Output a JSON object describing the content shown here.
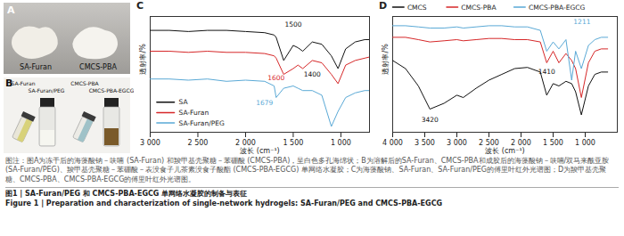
{
  "panels": {
    "A": {
      "label": "A",
      "samples": [
        "SA-Furan",
        "CMCS-PBA"
      ]
    },
    "B": {
      "label": "B",
      "samples": [
        "SA-Furan",
        "SA-Furan/PEG",
        "CMCS-PBA",
        "CMCS-PBA-EGCG"
      ]
    }
  },
  "chart_data": [
    {
      "type": "line",
      "title": "C",
      "xlabel": "波长 (cm⁻¹)",
      "ylabel": "透射率/%",
      "x": [
        3000,
        2800,
        2600,
        2400,
        2200,
        2000,
        1800,
        1700,
        1679,
        1600,
        1500,
        1450,
        1400,
        1300,
        1200,
        1100,
        1030,
        950,
        850,
        750,
        700
      ],
      "series": [
        {
          "name": "SA",
          "color": "#111111",
          "values": [
            88,
            88,
            87,
            88,
            88,
            87,
            86,
            84,
            82,
            62,
            75,
            73,
            70,
            78,
            76,
            66,
            55,
            72,
            78,
            80,
            80
          ]
        },
        {
          "name": "SA-Furan",
          "color": "#d62728",
          "values": [
            70,
            70,
            69,
            70,
            69,
            69,
            68,
            66,
            64,
            50,
            55,
            58,
            55,
            62,
            60,
            50,
            42,
            58,
            62,
            64,
            65
          ]
        },
        {
          "name": "SA-Furan/PEG",
          "color": "#5aa9d6",
          "values": [
            46,
            46,
            45,
            46,
            44,
            45,
            44,
            40,
            30,
            38,
            40,
            38,
            36,
            36,
            32,
            5,
            18,
            30,
            34,
            36,
            36
          ]
        }
      ],
      "xlim": [
        3000,
        700
      ],
      "xticks": [
        {
          "value": 3000,
          "label": "3 000"
        },
        {
          "value": 2500,
          "label": "2 500"
        },
        {
          "value": 2000,
          "label": "2 000"
        },
        {
          "value": 1500,
          "label": "1 500"
        },
        {
          "value": 1000,
          "label": "1 000"
        }
      ],
      "ylim": [
        0,
        100
      ],
      "tick_labels": "x",
      "legend": "lower left",
      "annotations": [
        {
          "label": "1500",
          "x": 1500,
          "y": 93,
          "color": "#111111"
        },
        {
          "label": "1600",
          "x": 1680,
          "y": 47,
          "color": "#d62728"
        },
        {
          "label": "1400",
          "x": 1300,
          "y": 50,
          "color": "#111111"
        },
        {
          "label": "1679",
          "x": 1800,
          "y": 25,
          "color": "#5aa9d6"
        }
      ]
    },
    {
      "type": "line",
      "title": "D",
      "xlabel": "波长 (cm⁻¹)",
      "ylabel": "透射率/%",
      "x": [
        4000,
        3800,
        3600,
        3420,
        3200,
        3000,
        2900,
        2700,
        2500,
        2300,
        2100,
        1900,
        1700,
        1600,
        1500,
        1410,
        1300,
        1211,
        1150,
        1060,
        950,
        850,
        750,
        650
      ],
      "series": [
        {
          "name": "CMCS",
          "color": "#111111",
          "values": [
            62,
            55,
            40,
            20,
            25,
            32,
            30,
            38,
            45,
            50,
            55,
            56,
            52,
            32,
            42,
            40,
            44,
            42,
            35,
            15,
            40,
            50,
            52,
            52
          ]
        },
        {
          "name": "CMCS-PBA",
          "color": "#d62728",
          "values": [
            82,
            82,
            80,
            78,
            79,
            80,
            79,
            80,
            81,
            81,
            80,
            80,
            78,
            60,
            70,
            60,
            68,
            62,
            55,
            30,
            60,
            70,
            72,
            72
          ]
        },
        {
          "name": "CMCS-PBA-EGCG",
          "color": "#5aa9d6",
          "values": [
            92,
            92,
            91,
            90,
            90,
            91,
            90,
            91,
            92,
            92,
            91,
            91,
            88,
            70,
            78,
            72,
            80,
            45,
            70,
            55,
            75,
            80,
            82,
            82
          ]
        }
      ],
      "xlim": [
        4000,
        500
      ],
      "xticks": [
        {
          "value": 4000,
          "label": "4 000"
        },
        {
          "value": 3500,
          "label": "3 500"
        },
        {
          "value": 3000,
          "label": "3 000"
        },
        {
          "value": 2500,
          "label": "2 500"
        },
        {
          "value": 2000,
          "label": "2 000"
        },
        {
          "value": 1500,
          "label": "1 500"
        },
        {
          "value": 1000,
          "label": "1 000"
        }
      ],
      "ylim": [
        0,
        100
      ],
      "tick_labels": "x",
      "legend": "top",
      "annotations": [
        {
          "label": "3420",
          "x": 3420,
          "y": 11,
          "color": "#111111"
        },
        {
          "label": "1410",
          "x": 1600,
          "y": 52,
          "color": "#111111"
        },
        {
          "label": "1211",
          "x": 1050,
          "y": 95,
          "color": "#5aa9d6"
        }
      ]
    }
  ],
  "caption": {
    "note": "图注：图A为冻干后的海藻酸钠－呋喃 (SA-Furan) 和羧甲基壳聚糖－苯硼酸 (CMCS-PBA)，呈白色多孔海绵状；B为溶解后的SA-Furan、CMCS-PBA和成胶后的海藻酸钠－呋喃/双马来酰亚胺 (SA-Furan/PEG)、羧甲基壳聚糖－苯硼酸－表没食子儿茶素没食子酸酯 (CMCS-PBA-EGCG) 单网络水凝胶；C为海藻酸钠、SA-Furan、SA-Furan/PEG的傅里叶红外光谱图；D为羧甲基壳聚糖、CMCS-PBA、CMCS-PBA-EGCG的傅里叶红外光谱图。",
    "title_zh": "图1 | SA-Furan/PEG 和 CMCS-PBA-EGCG 单网络水凝胶的制备与表征",
    "title_en": "Figure 1 | Preparation and characterization of single-network hydrogels: SA-Furan/PEG and CMCS-PBA-EGCG"
  }
}
